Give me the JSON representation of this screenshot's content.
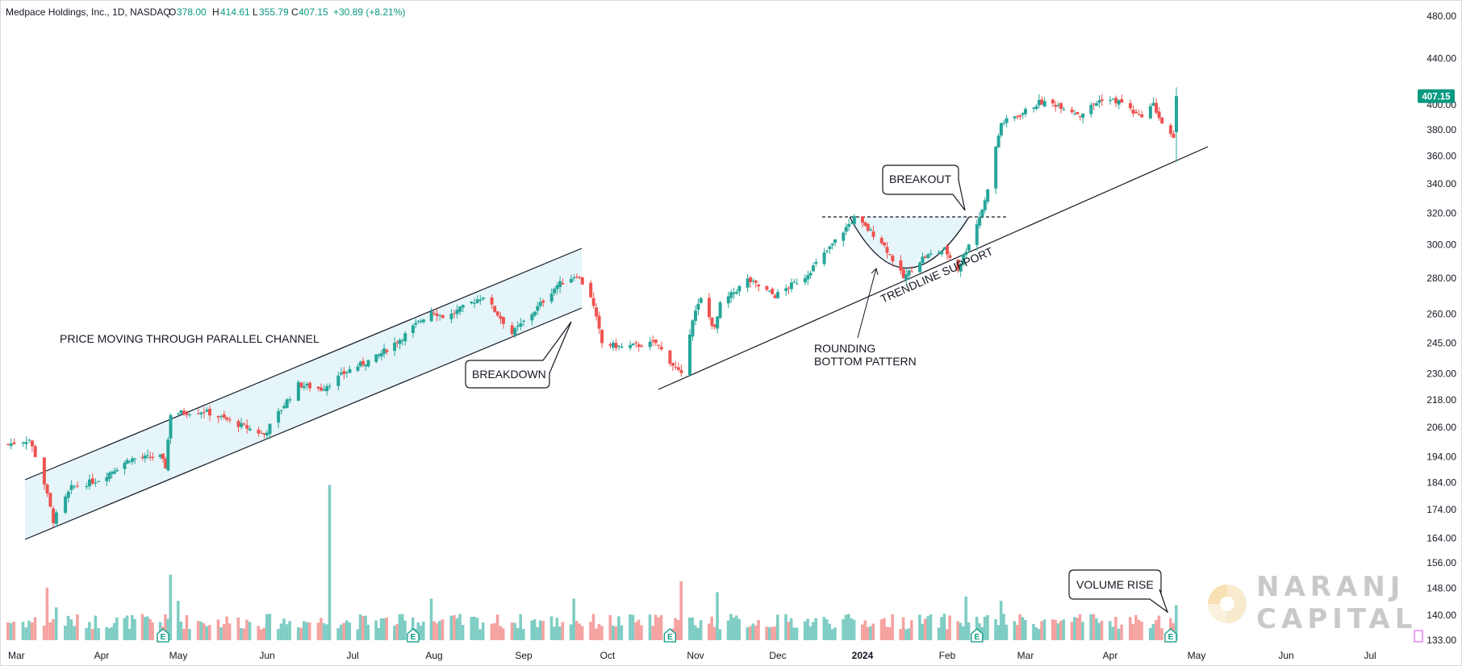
{
  "header": {
    "symbol": "Medpace Holdings, Inc., 1D, NASDAQ",
    "o_label": "O",
    "o_value": "378.00",
    "h_label": "H",
    "h_value": "414.61",
    "l_label": "L",
    "l_value": "355.79",
    "c_label": "C",
    "c_value": "407.15",
    "change": "+30.89 (+8.21%)"
  },
  "price_badge": "407.15",
  "price_badge_value": 407.15,
  "watermark": {
    "line1": "NARANJ",
    "line2": "CAPITAL"
  },
  "annotations": {
    "channel": "PRICE MOVING THROUGH PARALLEL CHANNEL",
    "breakdown": "BREAKDOWN",
    "breakout": "BREAKOUT",
    "rounding1": "ROUNDING",
    "rounding2": "BOTTOM PATTERN",
    "trendline": "TRENDLINE SUPPORT",
    "volume": "VOLUME RISE"
  },
  "earnings_marker": "E",
  "colors": {
    "up": "#26a69a",
    "down": "#ef5350",
    "up_vol": "#7fcdc4",
    "down_vol": "#f5a3a1",
    "channel_fill": "#e0f3f8",
    "badge": "#089981"
  },
  "chart_data": {
    "type": "candlestick",
    "scale": "log",
    "title": "Medpace Holdings, Inc., 1D, NASDAQ",
    "ylim": [
      133,
      480
    ],
    "y_ticks": [
      "480.00",
      "440.00",
      "400.00",
      "380.00",
      "360.00",
      "340.00",
      "320.00",
      "300.00",
      "280.00",
      "260.00",
      "245.00",
      "230.00",
      "218.00",
      "206.00",
      "194.00",
      "184.00",
      "174.00",
      "164.00",
      "156.00",
      "148.00",
      "140.00",
      "133.00"
    ],
    "x_ticks": [
      "Mar",
      "Apr",
      "May",
      "Jun",
      "Jul",
      "Aug",
      "Sep",
      "Oct",
      "Nov",
      "Dec",
      "2024",
      "Feb",
      "Mar",
      "Apr",
      "May",
      "Jun",
      "Jul"
    ],
    "anchors": [
      [
        "2023-03-01",
        199
      ],
      [
        "2023-03-08",
        201
      ],
      [
        "2023-03-12",
        188
      ],
      [
        "2023-03-16",
        170
      ],
      [
        "2023-03-22",
        182
      ],
      [
        "2023-03-31",
        185
      ],
      [
        "2023-04-12",
        193
      ],
      [
        "2023-04-24",
        194
      ],
      [
        "2023-04-26",
        190
      ],
      [
        "2023-04-28",
        212
      ],
      [
        "2023-05-10",
        213
      ],
      [
        "2023-05-31",
        203
      ],
      [
        "2023-06-12",
        225
      ],
      [
        "2023-06-20",
        223
      ],
      [
        "2023-06-30",
        232
      ],
      [
        "2023-07-10",
        238
      ],
      [
        "2023-07-20",
        248
      ],
      [
        "2023-07-31",
        262
      ],
      [
        "2023-08-05",
        258
      ],
      [
        "2023-08-18",
        270
      ],
      [
        "2023-08-28",
        250
      ],
      [
        "2023-09-05",
        262
      ],
      [
        "2023-09-13",
        276
      ],
      [
        "2023-09-20",
        282
      ],
      [
        "2023-09-25",
        270
      ],
      [
        "2023-09-29",
        245
      ],
      [
        "2023-10-06",
        243
      ],
      [
        "2023-10-18",
        245
      ],
      [
        "2023-10-27",
        229
      ],
      [
        "2023-10-31",
        258
      ],
      [
        "2023-11-03",
        268
      ],
      [
        "2023-11-08",
        252
      ],
      [
        "2023-11-10",
        265
      ],
      [
        "2023-11-20",
        279
      ],
      [
        "2023-11-30",
        270
      ],
      [
        "2023-12-11",
        281
      ],
      [
        "2023-12-20",
        298
      ],
      [
        "2023-12-29",
        317
      ],
      [
        "2024-01-08",
        302
      ],
      [
        "2024-01-16",
        280
      ],
      [
        "2024-01-23",
        292
      ],
      [
        "2024-01-31",
        297
      ],
      [
        "2024-02-05",
        285
      ],
      [
        "2024-02-12",
        313
      ],
      [
        "2024-02-15",
        328
      ],
      [
        "2024-02-21",
        385
      ],
      [
        "2024-02-28",
        392
      ],
      [
        "2024-03-06",
        402
      ],
      [
        "2024-03-13",
        400
      ],
      [
        "2024-03-21",
        392
      ],
      [
        "2024-03-29",
        405
      ],
      [
        "2024-04-05",
        402
      ],
      [
        "2024-04-11",
        390
      ],
      [
        "2024-04-16",
        400
      ],
      [
        "2024-04-19",
        385
      ],
      [
        "2024-04-23",
        372
      ],
      [
        "2024-04-24",
        407.15
      ]
    ],
    "last_candle": {
      "date": "2024-04-24",
      "open": 378.0,
      "high": 414.61,
      "low": 355.79,
      "close": 407.15,
      "change": 30.89,
      "change_pct": 8.21
    },
    "volume": {
      "unit": "relative",
      "base": 0.09,
      "spikes": [
        [
          "2023-03-14",
          0.24
        ],
        [
          "2023-03-17",
          0.15
        ],
        [
          "2023-04-28",
          0.3
        ],
        [
          "2023-05-01",
          0.18
        ],
        [
          "2023-06-23",
          0.71
        ],
        [
          "2023-07-31",
          0.19
        ],
        [
          "2023-09-19",
          0.19
        ],
        [
          "2023-10-27",
          0.27
        ],
        [
          "2023-11-09",
          0.22
        ],
        [
          "2024-02-08",
          0.2
        ],
        [
          "2024-02-21",
          0.18
        ],
        [
          "2024-04-24",
          0.16
        ]
      ]
    },
    "earnings": [
      "2023-04-25",
      "2023-07-24",
      "2023-10-23",
      "2024-02-12",
      "2024-04-22"
    ]
  }
}
